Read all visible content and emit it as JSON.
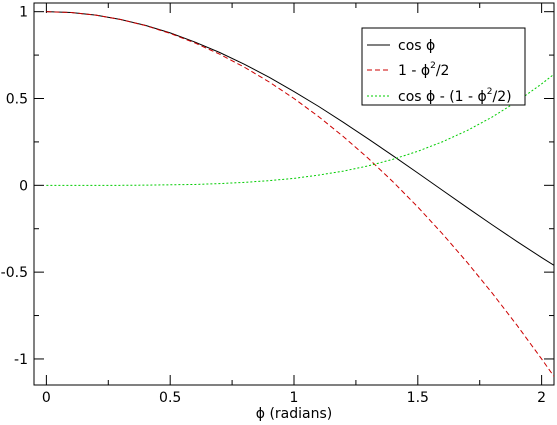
{
  "chart_data": {
    "type": "line",
    "title": "",
    "xlabel": "ϕ (radians)",
    "ylabel": "",
    "xlim": [
      -0.05,
      2.05
    ],
    "ylim": [
      -1.15,
      1.05
    ],
    "x_ticks": [
      0,
      0.5,
      1,
      1.5,
      2
    ],
    "x_tick_labels": [
      "0",
      "0.5",
      "1",
      "1.5",
      "2"
    ],
    "y_ticks": [
      -1,
      -0.5,
      0,
      0.5,
      1
    ],
    "y_tick_labels": [
      "-1",
      "-0.5",
      "0",
      "0.5",
      "1"
    ],
    "grid": false,
    "legend_position": "top-right",
    "x": [
      0,
      0.1,
      0.2,
      0.3,
      0.4,
      0.5,
      0.6,
      0.7,
      0.8,
      0.9,
      1.0,
      1.1,
      1.2,
      1.3,
      1.4,
      1.5,
      1.6,
      1.7,
      1.8,
      1.9,
      2.0,
      2.05
    ],
    "series": [
      {
        "name": "cos ϕ",
        "color": "#000000",
        "dash": "solid",
        "values": [
          1.0,
          0.995,
          0.98,
          0.955,
          0.921,
          0.878,
          0.825,
          0.765,
          0.697,
          0.622,
          0.54,
          0.454,
          0.362,
          0.267,
          0.17,
          0.071,
          -0.029,
          -0.129,
          -0.227,
          -0.323,
          -0.416,
          -0.461
        ]
      },
      {
        "name": "1 - ϕ²/2",
        "color": "#cc0000",
        "dash": "dashed",
        "values": [
          1.0,
          0.995,
          0.98,
          0.955,
          0.92,
          0.875,
          0.82,
          0.755,
          0.68,
          0.595,
          0.5,
          0.395,
          0.28,
          0.155,
          0.02,
          -0.125,
          -0.28,
          -0.445,
          -0.62,
          -0.805,
          -1.0,
          -1.101
        ]
      },
      {
        "name": "cos ϕ - (1 - ϕ²/2)",
        "color": "#00cc00",
        "dash": "dotted",
        "values": [
          0.0,
          0.0,
          0.0,
          0.0,
          0.001,
          0.003,
          0.005,
          0.01,
          0.017,
          0.027,
          0.04,
          0.059,
          0.082,
          0.112,
          0.15,
          0.196,
          0.251,
          0.316,
          0.393,
          0.482,
          0.584,
          0.64
        ]
      }
    ]
  },
  "legend": {
    "entries": [
      {
        "base": "cos ϕ",
        "sup": "",
        "tail": ""
      },
      {
        "base": "1 - ϕ",
        "sup": "2",
        "tail": "/2"
      },
      {
        "base": "cos ϕ - (1 - ϕ",
        "sup": "2",
        "tail": "/2)"
      }
    ]
  }
}
